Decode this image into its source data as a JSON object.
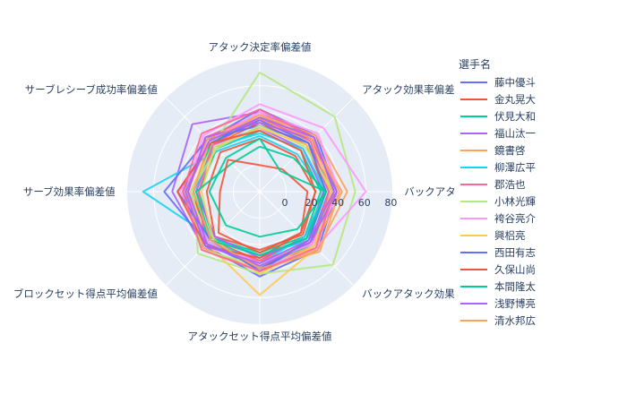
{
  "chart_data": {
    "type": "line",
    "subtype": "radar",
    "axes": [
      "アタック決定率偏差値",
      "アタック効果率偏差",
      "バックアタ",
      "バックアタック効果",
      "アタックセット得点平均偏差値",
      "ブロックセット得点平均偏差値",
      "サーブ効果率偏差値",
      "サーブレシーブ成功率偏差値"
    ],
    "radial_ticks": [
      "0",
      "20",
      "40",
      "60",
      "80"
    ],
    "radial_range": [
      0,
      100
    ],
    "legend_title": "選手名",
    "legend_placement": "right",
    "series": [
      {
        "name": "藤中優斗",
        "color": "#636efa",
        "values": [
          62,
          60,
          58,
          62,
          64,
          58,
          58,
          56
        ]
      },
      {
        "name": "金丸晃大",
        "color": "#EF553B",
        "values": [
          52,
          50,
          50,
          48,
          52,
          52,
          52,
          50
        ]
      },
      {
        "name": "伏見大和",
        "color": "#00cc96",
        "values": [
          56,
          52,
          54,
          56,
          58,
          54,
          50,
          52
        ]
      },
      {
        "name": "福山汰一",
        "color": "#ab63fa",
        "values": [
          60,
          58,
          56,
          58,
          60,
          60,
          66,
          72
        ]
      },
      {
        "name": "鏡書啓",
        "color": "#FFA15A",
        "values": [
          55,
          56,
          62,
          58,
          56,
          54,
          55,
          54
        ]
      },
      {
        "name": "柳澤広平",
        "color": "#19d3f3",
        "values": [
          42,
          40,
          48,
          52,
          48,
          50,
          88,
          44
        ]
      },
      {
        "name": "郡浩也",
        "color": "#FF6692",
        "values": [
          58,
          56,
          54,
          54,
          56,
          56,
          54,
          58
        ]
      },
      {
        "name": "小林光輝",
        "color": "#B6E880",
        "values": [
          90,
          80,
          72,
          78,
          62,
          66,
          50,
          50
        ]
      },
      {
        "name": "袴谷亮介",
        "color": "#FF97FF",
        "values": [
          66,
          68,
          80,
          60,
          58,
          56,
          56,
          60
        ]
      },
      {
        "name": "興梠亮",
        "color": "#FECB52",
        "values": [
          54,
          54,
          56,
          60,
          78,
          56,
          52,
          50
        ]
      },
      {
        "name": "西田有志",
        "color": "#636efa",
        "values": [
          50,
          52,
          52,
          54,
          58,
          56,
          72,
          56
        ]
      },
      {
        "name": "久保山尚",
        "color": "#EF553B",
        "values": [
          40,
          38,
          42,
          46,
          44,
          48,
          40,
          42
        ]
      },
      {
        "name": "本間隆太",
        "color": "#00cc96",
        "values": [
          46,
          44,
          46,
          48,
          46,
          50,
          46,
          46
        ]
      },
      {
        "name": "浅野博亮",
        "color": "#ab63fa",
        "values": [
          48,
          46,
          48,
          50,
          50,
          48,
          48,
          50
        ]
      },
      {
        "name": "清水邦広",
        "color": "#FFA15A",
        "values": [
          58,
          60,
          66,
          62,
          60,
          60,
          56,
          56
        ]
      },
      {
        "name": "",
        "color": "#19d3f3",
        "values": [
          44,
          46,
          50,
          48,
          54,
          52,
          50,
          48
        ]
      },
      {
        "name": "",
        "color": "#FF6692",
        "values": [
          56,
          54,
          52,
          56,
          52,
          58,
          46,
          50
        ]
      },
      {
        "name": "",
        "color": "#B6E880",
        "values": [
          50,
          48,
          56,
          52,
          56,
          62,
          52,
          46
        ]
      },
      {
        "name": "",
        "color": "#FF97FF",
        "values": [
          60,
          62,
          60,
          56,
          54,
          54,
          60,
          54
        ]
      },
      {
        "name": "",
        "color": "#FECB52",
        "values": [
          48,
          50,
          54,
          58,
          62,
          50,
          44,
          48
        ]
      },
      {
        "name": "",
        "color": "#636efa",
        "values": [
          54,
          52,
          50,
          52,
          60,
          52,
          62,
          52
        ]
      },
      {
        "name": "",
        "color": "#EF553B",
        "values": [
          46,
          44,
          42,
          44,
          50,
          58,
          62,
          52
        ]
      },
      {
        "name": "",
        "color": "#00cc96",
        "values": [
          34,
          36,
          50,
          50,
          48,
          52,
          48,
          30
        ]
      },
      {
        "name": "",
        "color": "#ab63fa",
        "values": [
          52,
          56,
          58,
          54,
          56,
          56,
          54,
          58
        ]
      },
      {
        "name": "",
        "color": "#FFA15A",
        "values": [
          58,
          56,
          60,
          64,
          58,
          52,
          50,
          54
        ]
      },
      {
        "name": "",
        "color": "#EF553B",
        "values": [
          20,
          24,
          36,
          44,
          46,
          44,
          30,
          34
        ]
      },
      {
        "name": "",
        "color": "#00cc96",
        "values": [
          40,
          22,
          50,
          40,
          34,
          36,
          38,
          36
        ]
      },
      {
        "name": "",
        "color": "#FF6692",
        "values": [
          62,
          58,
          56,
          60,
          60,
          62,
          58,
          62
        ]
      },
      {
        "name": "",
        "color": "#ab63fa",
        "values": [
          56,
          58,
          56,
          52,
          54,
          58,
          56,
          54
        ]
      }
    ]
  }
}
